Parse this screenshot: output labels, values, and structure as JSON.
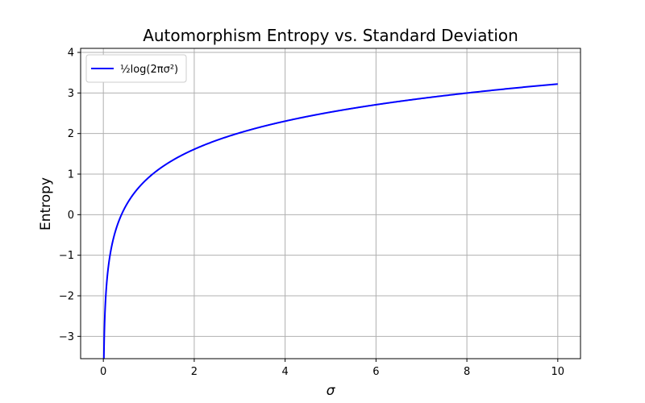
{
  "chart_data": {
    "type": "line",
    "title": "Automorphism Entropy vs. Standard Deviation",
    "xlabel": "σ",
    "ylabel": "Entropy",
    "xlim": [
      -0.5,
      10.5
    ],
    "ylim": [
      -3.55,
      4.1
    ],
    "xticks": [
      0,
      2,
      4,
      6,
      8,
      10
    ],
    "xtick_labels": [
      "0",
      "2",
      "4",
      "6",
      "8",
      "10"
    ],
    "yticks": [
      -3,
      -2,
      -1,
      0,
      1,
      2,
      3,
      4
    ],
    "ytick_labels": [
      "−3",
      "−2",
      "−1",
      "0",
      "1",
      "2",
      "3",
      "4"
    ],
    "grid": true,
    "legend_position": "top-left",
    "series": [
      {
        "name": "½log(2πσ²)",
        "color": "#0000ff",
        "x_range": [
          0.01,
          10
        ],
        "function": "0.5*ln(2*pi*x^2)",
        "x": [
          0.01,
          0.02,
          0.05,
          0.1,
          0.2,
          0.3,
          0.5,
          0.75,
          1,
          1.5,
          2,
          3,
          4,
          5,
          6,
          7,
          8,
          9,
          10
        ],
        "y": [
          -3.69,
          -2.99,
          -2.08,
          -1.38,
          -0.69,
          -0.29,
          0.23,
          0.63,
          0.92,
          1.32,
          1.61,
          2.02,
          2.31,
          2.53,
          2.71,
          2.87,
          3.0,
          3.12,
          3.22
        ]
      }
    ]
  }
}
